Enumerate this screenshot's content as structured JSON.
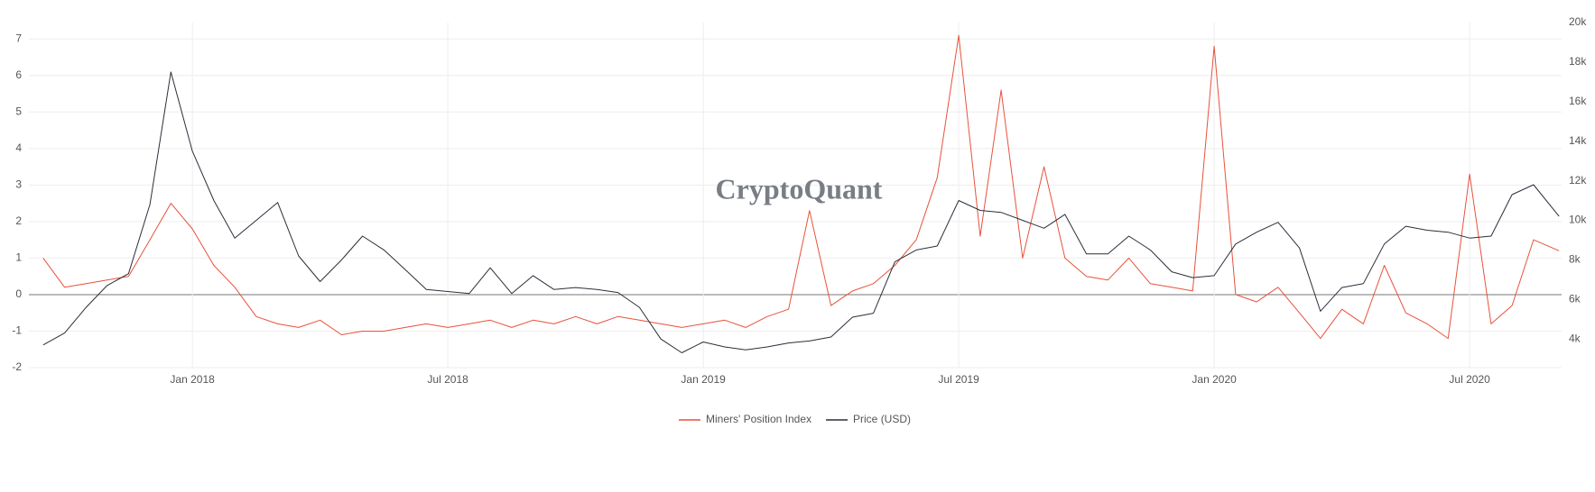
{
  "chart_data": {
    "type": "line",
    "watermark": "CryptoQuant",
    "x": [
      2017.708,
      2017.75,
      2017.792,
      2017.833,
      2017.875,
      2017.917,
      2017.958,
      2018.0,
      2018.042,
      2018.083,
      2018.125,
      2018.167,
      2018.208,
      2018.25,
      2018.292,
      2018.333,
      2018.375,
      2018.417,
      2018.458,
      2018.5,
      2018.542,
      2018.583,
      2018.625,
      2018.667,
      2018.708,
      2018.75,
      2018.792,
      2018.833,
      2018.875,
      2018.917,
      2018.958,
      2019.0,
      2019.042,
      2019.083,
      2019.125,
      2019.167,
      2019.208,
      2019.25,
      2019.292,
      2019.333,
      2019.375,
      2019.417,
      2019.458,
      2019.5,
      2019.542,
      2019.583,
      2019.625,
      2019.667,
      2019.708,
      2019.75,
      2019.792,
      2019.833,
      2019.875,
      2019.917,
      2019.958,
      2020.0,
      2020.042,
      2020.083,
      2020.125,
      2020.167,
      2020.208,
      2020.25,
      2020.292,
      2020.333,
      2020.375,
      2020.417,
      2020.458,
      2020.5,
      2020.542,
      2020.583,
      2020.625,
      2020.675
    ],
    "series": [
      {
        "name": "Miners' Position Index",
        "color": "#e8513b",
        "axis": "y",
        "values": [
          1.0,
          0.2,
          0.3,
          0.4,
          0.5,
          1.5,
          2.5,
          1.8,
          0.8,
          0.2,
          -0.6,
          -0.8,
          -0.9,
          -0.7,
          -1.1,
          -1.0,
          -1.0,
          -0.9,
          -0.8,
          -0.9,
          -0.8,
          -0.7,
          -0.9,
          -0.7,
          -0.8,
          -0.6,
          -0.8,
          -0.6,
          -0.7,
          -0.8,
          -0.9,
          -0.8,
          -0.7,
          -0.9,
          -0.6,
          -0.4,
          2.3,
          -0.3,
          0.1,
          0.3,
          0.8,
          1.5,
          3.2,
          7.1,
          1.6,
          5.6,
          1.0,
          3.5,
          1.0,
          0.5,
          0.4,
          1.0,
          0.3,
          0.2,
          0.1,
          6.8,
          0.0,
          -0.2,
          0.2,
          -0.5,
          -1.2,
          -0.4,
          -0.8,
          0.8,
          -0.5,
          -0.8,
          -1.2,
          3.3,
          -0.8,
          -0.3,
          1.5,
          1.2
        ]
      },
      {
        "name": "Price (USD)",
        "color": "#2a2f3a",
        "axis": "y2",
        "values": [
          3700,
          4300,
          5600,
          6700,
          7300,
          10800,
          17500,
          13500,
          11000,
          9100,
          10000,
          10900,
          8200,
          6900,
          8000,
          9200,
          8500,
          7500,
          6500,
          6400,
          6300,
          7600,
          6300,
          7200,
          6500,
          6600,
          6500,
          6350,
          5600,
          4000,
          3300,
          3850,
          3600,
          3450,
          3600,
          3800,
          3900,
          4100,
          5100,
          5300,
          7900,
          8500,
          8700,
          11000,
          10500,
          10400,
          10000,
          9600,
          10300,
          8300,
          8300,
          9200,
          8500,
          7400,
          7100,
          7200,
          8800,
          9400,
          9900,
          8600,
          5400,
          6600,
          6800,
          8800,
          9700,
          9500,
          9400,
          9100,
          9200,
          11300,
          11800,
          10200
        ]
      }
    ],
    "xlim": [
      2017.68,
      2020.68
    ],
    "xticks": [
      {
        "value": 2018,
        "label": "Jan 2018"
      },
      {
        "value": 2018.5,
        "label": "Jul 2018"
      },
      {
        "value": 2019,
        "label": "Jan 2019"
      },
      {
        "value": 2019.5,
        "label": "Jul 2019"
      },
      {
        "value": 2020,
        "label": "Jan 2020"
      },
      {
        "value": 2020.5,
        "label": "Jul 2020"
      }
    ],
    "ylim": [
      -2,
      7.45
    ],
    "yticks": [
      -2,
      -1,
      0,
      1,
      2,
      3,
      4,
      5,
      6,
      7
    ],
    "y2lim": [
      2550,
      20000
    ],
    "y2ticks": [
      {
        "value": 4000,
        "label": "4k"
      },
      {
        "value": 6000,
        "label": "6k"
      },
      {
        "value": 8000,
        "label": "8k"
      },
      {
        "value": 10000,
        "label": "10k"
      },
      {
        "value": 12000,
        "label": "12k"
      },
      {
        "value": 14000,
        "label": "14k"
      },
      {
        "value": 16000,
        "label": "16k"
      },
      {
        "value": 18000,
        "label": "18k"
      },
      {
        "value": 20000,
        "label": "20k"
      }
    ],
    "grid": true,
    "legend": "bottom"
  }
}
